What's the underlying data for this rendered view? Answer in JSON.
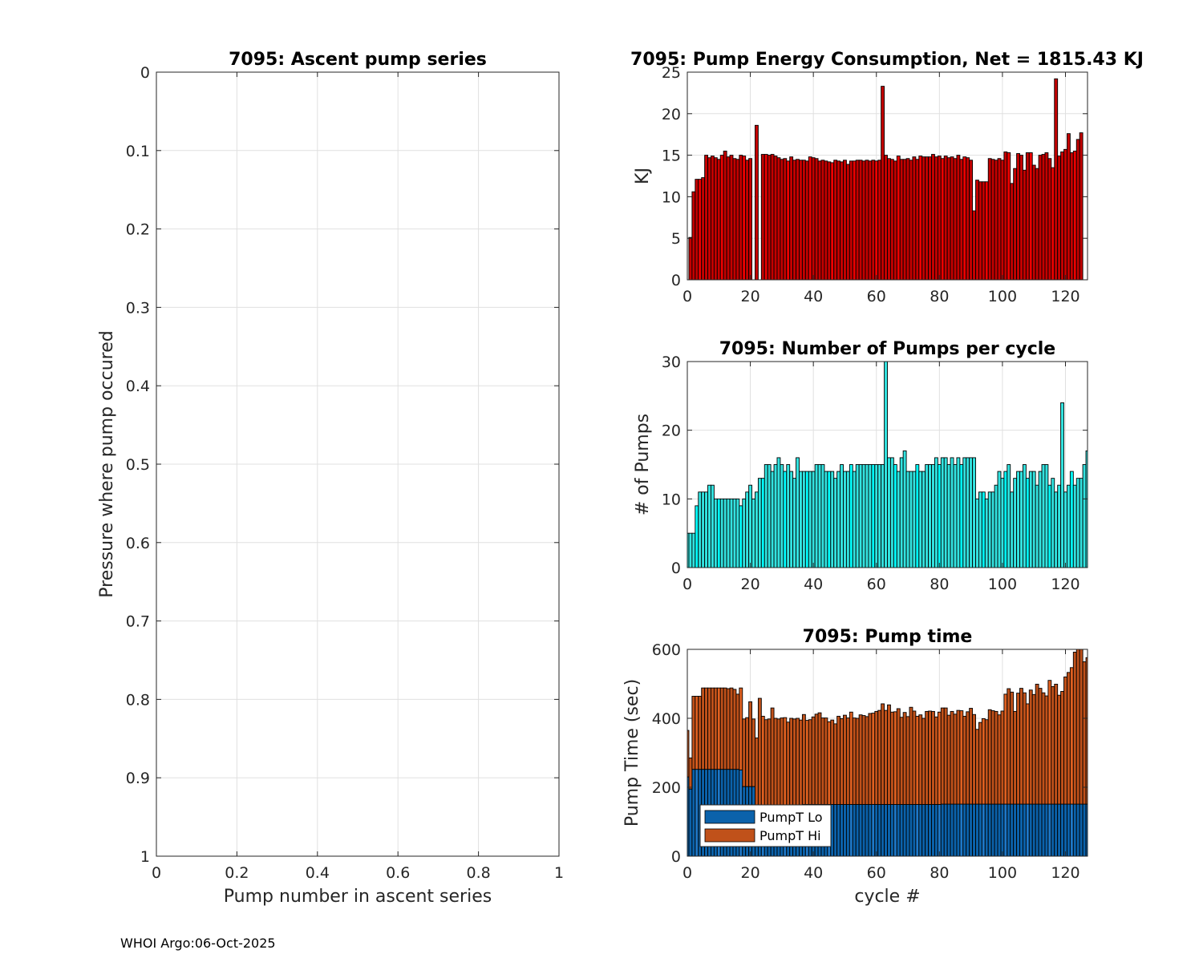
{
  "footer": "WHOI Argo:06-Oct-2025",
  "colors": {
    "energy_fill": "#c40000",
    "energy_alt": "#ee0000",
    "pumps_fill": "#33e3e0",
    "pumps_alt": "#00ffff",
    "lo_fill": "#0b62ab",
    "lo_alt": "#1e78c8",
    "hi_fill": "#c0511a",
    "hi_alt": "#e06020",
    "grid": "#e0e0e0",
    "axis": "#262626"
  },
  "chart_data": [
    {
      "type": "line",
      "title": "7095: Ascent pump series",
      "xlabel": "Pump number in ascent series",
      "ylabel": "Pressure where pump occured",
      "xlim": [
        0,
        1
      ],
      "ylim": [
        0,
        1
      ],
      "y_reversed": true,
      "xticks": [
        "0",
        "0.2",
        "0.4",
        "0.6",
        "0.8",
        "1"
      ],
      "yticks": [
        "0",
        "0.1",
        "0.2",
        "0.3",
        "0.4",
        "0.5",
        "0.6",
        "0.7",
        "0.8",
        "0.9",
        "1"
      ],
      "grid": true,
      "series": []
    },
    {
      "type": "bar",
      "title": "7095: Pump Energy Consumption,  Net = 1815.43 KJ",
      "xlabel": "",
      "ylabel": "KJ",
      "xlim": [
        0,
        127
      ],
      "ylim": [
        0,
        25
      ],
      "xticks": [
        "0",
        "20",
        "40",
        "60",
        "80",
        "100",
        "120"
      ],
      "yticks": [
        "0",
        "5",
        "10",
        "15",
        "20",
        "25"
      ],
      "grid": true,
      "x_start": 1,
      "values": [
        5.1,
        10.6,
        12.1,
        12.1,
        12.3,
        15,
        14.7,
        14.9,
        14.7,
        14.5,
        15,
        15.5,
        14.8,
        15,
        14.6,
        14.5,
        15,
        14.9,
        14.4,
        14.6,
        0,
        18.6,
        0,
        15.1,
        15.1,
        15,
        15.1,
        14.9,
        14.7,
        14.5,
        14.6,
        14.3,
        14.8,
        14.4,
        14.5,
        14.4,
        14.4,
        14.3,
        14.8,
        14.7,
        14.6,
        14.3,
        14.4,
        14.3,
        14.2,
        14.1,
        14.4,
        14.3,
        14.2,
        14.4,
        13.9,
        14.3,
        14.3,
        14.4,
        14.4,
        14.3,
        14.4,
        14.3,
        14.4,
        14.3,
        14.4,
        23.3,
        15,
        14.6,
        14.5,
        14.3,
        14.9,
        14.5,
        14.5,
        14.6,
        14.4,
        14.8,
        14.5,
        14.9,
        14.8,
        14.8,
        14.8,
        15.1,
        14.8,
        14.9,
        14.6,
        14.9,
        14.7,
        14.8,
        14.6,
        15,
        14.5,
        14.8,
        14.7,
        14.4,
        8.3,
        12,
        11.8,
        11.8,
        11.8,
        14.6,
        14.5,
        14.4,
        14.6,
        14.4,
        15.4,
        15.3,
        11.6,
        13.4,
        15.2,
        15,
        13.2,
        15.3,
        15.3,
        13.8,
        13.4,
        15,
        15.1,
        15.3,
        14.6,
        13.5,
        24.2,
        14.9,
        15.4,
        15.7,
        17.6,
        15.3,
        15.5,
        16.9,
        17.7
      ]
    },
    {
      "type": "bar",
      "title": "7095: Number of Pumps per cycle",
      "xlabel": "",
      "ylabel": "# of Pumps",
      "xlim": [
        0,
        127
      ],
      "ylim": [
        0,
        30
      ],
      "xticks": [
        "0",
        "20",
        "40",
        "60",
        "80",
        "100",
        "120"
      ],
      "yticks": [
        "0",
        "10",
        "20",
        "30"
      ],
      "grid": true,
      "x_start": 0,
      "values": [
        5,
        5,
        5,
        9,
        11,
        11,
        11,
        12,
        12,
        10,
        10,
        10,
        10,
        10,
        10,
        10,
        10,
        9,
        10,
        11,
        12,
        10,
        11,
        13,
        13,
        15,
        15,
        14,
        15,
        16,
        15,
        14,
        15,
        14,
        13,
        16,
        14,
        14,
        14,
        14,
        14,
        15,
        15,
        15,
        14,
        14,
        14,
        13,
        14,
        15,
        14,
        14,
        15,
        14,
        15,
        15,
        15,
        15,
        15,
        15,
        15,
        15,
        15,
        30,
        16,
        16,
        15,
        14,
        16,
        17,
        14,
        14,
        14,
        15,
        14,
        14,
        15,
        15,
        15,
        16,
        15,
        16,
        16,
        15,
        16,
        15,
        16,
        15,
        16,
        16,
        16,
        16,
        10,
        11,
        11,
        10,
        11,
        11,
        12,
        14,
        13,
        14,
        15,
        11,
        13,
        14,
        14,
        15,
        13,
        14,
        14,
        12,
        14,
        15,
        15,
        12,
        13,
        11,
        12,
        24,
        11,
        12,
        14,
        12,
        13,
        13,
        15,
        17
      ]
    },
    {
      "type": "bar",
      "stacked": true,
      "title": "7095: Pump time",
      "xlabel": "cycle #",
      "ylabel": "Pump Time (sec)",
      "xlim": [
        0,
        127
      ],
      "ylim": [
        0,
        600
      ],
      "xticks": [
        "0",
        "20",
        "40",
        "60",
        "80",
        "100",
        "120"
      ],
      "yticks": [
        "0",
        "200",
        "400",
        "600"
      ],
      "grid": true,
      "legend": {
        "position": "bottom-left",
        "entries": [
          "PumpT Lo",
          "PumpT Hi"
        ]
      },
      "x_start": 0,
      "series": [
        {
          "name": "PumpT Lo",
          "values": [
            230,
            195,
            252,
            252,
            252,
            252,
            252,
            252,
            252,
            252,
            252,
            252,
            252,
            252,
            252,
            252,
            252,
            250,
            202,
            202,
            202,
            202,
            148,
            148,
            148,
            148,
            148,
            148,
            148,
            148,
            149,
            149,
            149,
            149,
            149,
            149,
            149,
            150,
            150,
            150,
            150,
            150,
            150,
            150,
            150,
            150,
            150,
            150,
            150,
            150,
            150,
            150,
            150,
            150,
            150,
            150,
            150,
            150,
            150,
            150,
            150,
            150,
            150,
            150,
            150,
            150,
            150,
            150,
            150,
            150,
            150,
            150,
            150,
            150,
            150,
            150,
            150,
            150,
            150,
            150,
            150,
            151,
            151,
            151,
            151,
            151,
            151,
            151,
            151,
            151,
            151,
            151,
            151,
            151,
            151,
            151,
            151,
            151,
            151,
            151,
            151,
            151,
            151,
            151,
            151,
            151,
            151,
            151,
            151,
            151,
            151,
            151,
            151,
            151,
            151,
            151,
            151,
            151,
            151,
            151,
            151,
            151,
            151,
            151,
            151,
            151,
            151,
            151
          ]
        },
        {
          "name": "PumpT Hi",
          "values": [
            135,
            90,
            212,
            212,
            212,
            236,
            236,
            236,
            236,
            236,
            236,
            236,
            236,
            234,
            236,
            232,
            218,
            238,
            196,
            200,
            246,
            196,
            195,
            310,
            258,
            248,
            250,
            282,
            252,
            250,
            252,
            253,
            240,
            251,
            249,
            251,
            246,
            261,
            244,
            246,
            254,
            262,
            266,
            251,
            251,
            240,
            245,
            234,
            256,
            249,
            259,
            251,
            268,
            251,
            250,
            260,
            258,
            255,
            264,
            265,
            270,
            273,
            292,
            273,
            289,
            268,
            269,
            278,
            253,
            267,
            255,
            282,
            271,
            256,
            260,
            250,
            270,
            271,
            270,
            254,
            268,
            279,
            279,
            258,
            269,
            261,
            272,
            271,
            255,
            268,
            278,
            260,
            217,
            237,
            248,
            245,
            274,
            271,
            269,
            259,
            270,
            319,
            335,
            325,
            269,
            322,
            336,
            323,
            291,
            331,
            318,
            348,
            336,
            323,
            314,
            359,
            341,
            348,
            316,
            327,
            369,
            382,
            396,
            441,
            449,
            462,
            413,
            425
          ]
        }
      ]
    }
  ]
}
